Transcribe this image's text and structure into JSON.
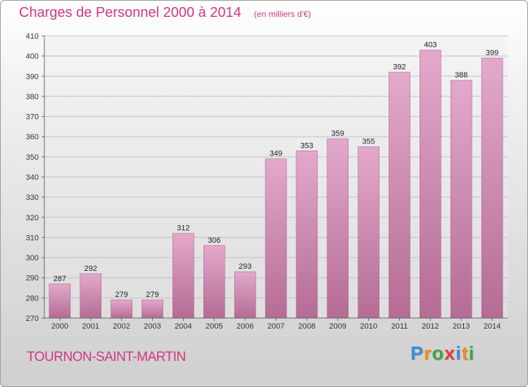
{
  "chart_data": {
    "type": "bar",
    "title": "Charges de Personnel 2000 à 2014",
    "subtitle": "(en milliers d'€)",
    "categories": [
      "2000",
      "2001",
      "2002",
      "2003",
      "2004",
      "2005",
      "2006",
      "2007",
      "2008",
      "2009",
      "2010",
      "2011",
      "2012",
      "2013",
      "2014"
    ],
    "values": [
      287,
      292,
      279,
      279,
      312,
      306,
      293,
      349,
      353,
      359,
      355,
      392,
      403,
      388,
      399
    ],
    "ylim": [
      270,
      410
    ],
    "yticks": [
      270,
      280,
      290,
      300,
      310,
      320,
      330,
      340,
      350,
      360,
      370,
      380,
      390,
      400,
      410
    ],
    "grid": true,
    "bar_color": "#d07aa8"
  },
  "footer": {
    "commune": "TOURNON-SAINT-MARTIN",
    "brand_letters": [
      "P",
      "r",
      "o",
      "x",
      "i",
      "t",
      "i"
    ],
    "brand_colors": [
      "#3a8fd6",
      "#f28b1c",
      "#3aa83a",
      "#e63a3a",
      "#3a8fd6",
      "#f28b1c",
      "#3aa83a"
    ]
  }
}
